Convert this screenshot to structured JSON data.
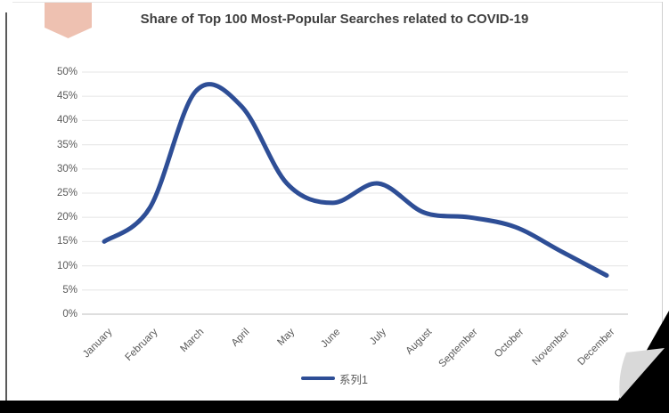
{
  "header": {
    "title": "Share of Top 100 Most-Popular Searches related to COVID-19"
  },
  "legend": {
    "series_label": "系列1"
  },
  "colors": {
    "line": "#2e4e96",
    "title_text": "#3f3f3f",
    "axis_text": "#595959",
    "gridline": "#e9e9e9",
    "axis_line": "#c9c9c9",
    "bookmark_pink": "#eec1b1",
    "corner_black": "#000000",
    "fold_gray": "#d9d9d9"
  },
  "chart_data": {
    "type": "line",
    "title": "Share of Top 100 Most-Popular Searches related to COVID-19",
    "categories": [
      "January",
      "February",
      "March",
      "April",
      "May",
      "June",
      "July",
      "August",
      "September",
      "October",
      "November",
      "December"
    ],
    "series": [
      {
        "name": "系列1",
        "values": [
          15,
          22,
          46,
          43,
          27,
          23,
          27,
          21,
          20,
          18,
          13,
          8
        ]
      }
    ],
    "unit": "%",
    "xlabel": "",
    "ylabel": "",
    "ylim": [
      0,
      50
    ],
    "y_tick_step": 5,
    "y_tick_labels": [
      "0%",
      "5%",
      "10%",
      "15%",
      "20%",
      "25%",
      "30%",
      "35%",
      "40%",
      "45%",
      "50%"
    ],
    "grid": true,
    "smooth": true,
    "legend_position": "bottom"
  }
}
